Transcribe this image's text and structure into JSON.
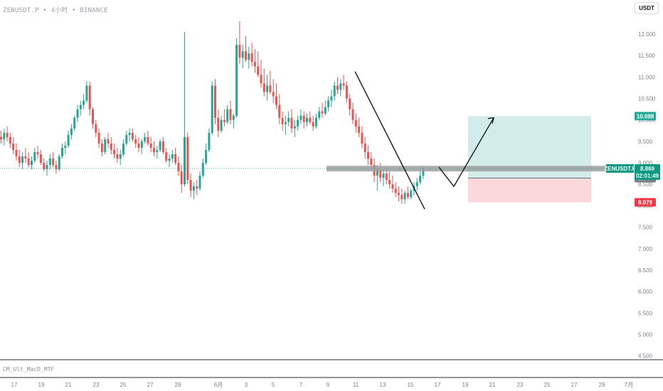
{
  "header": {
    "symbol": "ZENUSDT.P",
    "interval": "4小时",
    "exchange": "BINANCE",
    "separator": "•"
  },
  "currency_button": "USDT",
  "indicator_pane_label": "CM_Ult_MacD_MTF",
  "price_labels": {
    "target": "10.088",
    "ticker": "ZENUSDT.P",
    "current_price": "8.869",
    "countdown": "02:01:49",
    "entry": "8.644",
    "stop": "8.079"
  },
  "colors": {
    "up": "#26a69a",
    "down": "#ef5350",
    "profit_zone": "#b2dfdb",
    "loss_zone": "#f8c8cc",
    "support_band": "#9e9e9e",
    "stop_label": "#f23645",
    "target_label": "#22ab94",
    "ticker_label": "#089981",
    "entry_label": "#787b86"
  },
  "chart_data": {
    "type": "candlestick",
    "ylim": [
      4.4,
      12.6
    ],
    "y_ticks": [
      "4.500",
      "5.000",
      "5.500",
      "6.000",
      "6.500",
      "7.000",
      "7.500",
      "8.000",
      "8.500",
      "9.000",
      "9.500",
      "10.000",
      "10.500",
      "11.000",
      "11.500",
      "12.000"
    ],
    "x_ticks": [
      "17",
      "19",
      "21",
      "23",
      "25",
      "27",
      "29",
      "6月",
      "3",
      "5",
      "7",
      "9",
      "11",
      "13",
      "15",
      "17",
      "19",
      "21",
      "23",
      "25",
      "27",
      "29",
      "7月"
    ],
    "ohlc": [
      [
        9.6,
        9.75,
        9.45,
        9.55
      ],
      [
        9.55,
        9.8,
        9.4,
        9.7
      ],
      [
        9.7,
        9.85,
        9.5,
        9.6
      ],
      [
        9.6,
        9.7,
        9.35,
        9.45
      ],
      [
        9.45,
        9.6,
        9.2,
        9.3
      ],
      [
        9.3,
        9.45,
        9.05,
        9.15
      ],
      [
        9.15,
        9.3,
        8.9,
        9.0
      ],
      [
        9.0,
        9.25,
        8.85,
        9.15
      ],
      [
        9.15,
        9.35,
        9.0,
        9.1
      ],
      [
        9.1,
        9.25,
        8.9,
        8.95
      ],
      [
        8.95,
        9.15,
        8.85,
        9.05
      ],
      [
        9.05,
        9.35,
        9.0,
        9.25
      ],
      [
        9.25,
        9.4,
        9.1,
        9.2
      ],
      [
        9.2,
        9.3,
        8.95,
        9.0
      ],
      [
        9.0,
        9.1,
        8.8,
        8.85
      ],
      [
        8.85,
        9.05,
        8.7,
        8.95
      ],
      [
        8.95,
        9.2,
        8.85,
        9.1
      ],
      [
        9.1,
        9.25,
        8.9,
        8.95
      ],
      [
        8.95,
        9.05,
        8.75,
        8.85
      ],
      [
        8.85,
        9.2,
        8.8,
        9.15
      ],
      [
        9.15,
        9.45,
        9.1,
        9.35
      ],
      [
        9.35,
        9.5,
        9.2,
        9.4
      ],
      [
        9.4,
        9.75,
        9.35,
        9.65
      ],
      [
        9.65,
        9.9,
        9.55,
        9.8
      ],
      [
        9.8,
        10.1,
        9.75,
        10.05
      ],
      [
        10.05,
        10.35,
        9.95,
        10.25
      ],
      [
        10.25,
        10.45,
        10.1,
        10.35
      ],
      [
        10.35,
        10.6,
        10.25,
        10.45
      ],
      [
        10.45,
        10.9,
        10.4,
        10.8
      ],
      [
        10.8,
        10.9,
        10.1,
        10.25
      ],
      [
        10.25,
        10.3,
        9.8,
        9.9
      ],
      [
        9.9,
        10.0,
        9.6,
        9.7
      ],
      [
        9.7,
        9.8,
        9.35,
        9.45
      ],
      [
        9.45,
        9.55,
        9.15,
        9.25
      ],
      [
        9.25,
        9.6,
        9.2,
        9.55
      ],
      [
        9.55,
        9.7,
        9.35,
        9.45
      ],
      [
        9.45,
        9.6,
        9.2,
        9.3
      ],
      [
        9.3,
        9.45,
        9.1,
        9.2
      ],
      [
        9.2,
        9.35,
        9.0,
        9.1
      ],
      [
        9.1,
        9.3,
        8.95,
        9.2
      ],
      [
        9.2,
        9.55,
        9.15,
        9.45
      ],
      [
        9.45,
        9.75,
        9.4,
        9.65
      ],
      [
        9.65,
        9.8,
        9.5,
        9.7
      ],
      [
        9.7,
        9.8,
        9.5,
        9.55
      ],
      [
        9.55,
        9.65,
        9.35,
        9.45
      ],
      [
        9.45,
        9.6,
        9.25,
        9.35
      ],
      [
        9.35,
        9.55,
        9.2,
        9.5
      ],
      [
        9.5,
        9.7,
        9.45,
        9.6
      ],
      [
        9.6,
        9.75,
        9.4,
        9.45
      ],
      [
        9.45,
        9.6,
        9.25,
        9.35
      ],
      [
        9.35,
        9.5,
        9.15,
        9.25
      ],
      [
        9.25,
        9.4,
        9.1,
        9.3
      ],
      [
        9.3,
        9.55,
        9.25,
        9.5
      ],
      [
        9.5,
        9.6,
        9.2,
        9.25
      ],
      [
        9.25,
        9.35,
        9.0,
        9.05
      ],
      [
        9.05,
        9.2,
        8.9,
        9.1
      ],
      [
        9.1,
        9.3,
        9.0,
        9.2
      ],
      [
        9.2,
        9.35,
        8.95,
        9.0
      ],
      [
        9.0,
        9.15,
        8.7,
        8.8
      ],
      [
        8.8,
        8.95,
        8.3,
        8.5
      ],
      [
        8.5,
        12.05,
        8.45,
        9.6
      ],
      [
        9.6,
        9.7,
        8.5,
        8.6
      ],
      [
        8.6,
        8.75,
        8.2,
        8.35
      ],
      [
        8.35,
        8.55,
        8.15,
        8.45
      ],
      [
        8.45,
        8.6,
        8.25,
        8.4
      ],
      [
        8.4,
        8.8,
        8.35,
        8.7
      ],
      [
        8.7,
        9.1,
        8.65,
        9.0
      ],
      [
        9.0,
        9.45,
        8.95,
        9.3
      ],
      [
        9.3,
        9.8,
        9.25,
        9.7
      ],
      [
        9.7,
        10.9,
        9.65,
        10.8
      ],
      [
        10.8,
        10.95,
        9.9,
        10.05
      ],
      [
        10.05,
        10.25,
        9.6,
        9.75
      ],
      [
        9.75,
        10.1,
        9.7,
        10.0
      ],
      [
        10.0,
        10.25,
        9.85,
        9.95
      ],
      [
        9.95,
        10.35,
        9.9,
        10.25
      ],
      [
        10.25,
        10.45,
        9.9,
        10.0
      ],
      [
        10.0,
        10.15,
        9.8,
        10.1
      ],
      [
        10.1,
        11.9,
        10.05,
        11.75
      ],
      [
        11.75,
        12.3,
        11.3,
        11.45
      ],
      [
        11.45,
        11.75,
        11.2,
        11.6
      ],
      [
        11.6,
        11.95,
        11.35,
        11.4
      ],
      [
        11.4,
        11.7,
        11.2,
        11.55
      ],
      [
        11.55,
        11.8,
        11.25,
        11.35
      ],
      [
        11.35,
        11.65,
        11.1,
        11.25
      ],
      [
        11.25,
        11.6,
        11.0,
        11.05
      ],
      [
        11.05,
        11.4,
        10.75,
        10.85
      ],
      [
        10.85,
        11.2,
        10.55,
        10.65
      ],
      [
        10.65,
        11.05,
        10.45,
        10.8
      ],
      [
        10.8,
        11.15,
        10.6,
        10.65
      ],
      [
        10.65,
        10.95,
        10.4,
        10.55
      ],
      [
        10.55,
        10.85,
        10.25,
        10.35
      ],
      [
        10.35,
        10.6,
        9.9,
        10.05
      ],
      [
        10.05,
        10.2,
        9.75,
        9.9
      ],
      [
        9.9,
        10.1,
        9.65,
        9.95
      ],
      [
        9.95,
        10.2,
        9.85,
        10.05
      ],
      [
        10.05,
        10.25,
        9.7,
        9.8
      ],
      [
        9.8,
        10.0,
        9.6,
        9.85
      ],
      [
        9.85,
        10.1,
        9.75,
        10.0
      ],
      [
        10.0,
        10.25,
        9.9,
        10.1
      ],
      [
        10.1,
        10.2,
        9.8,
        9.95
      ],
      [
        9.95,
        10.15,
        9.85,
        10.05
      ],
      [
        10.05,
        10.2,
        9.9,
        9.95
      ],
      [
        9.95,
        10.1,
        9.75,
        9.85
      ],
      [
        9.85,
        10.15,
        9.8,
        10.05
      ],
      [
        10.05,
        10.3,
        10.0,
        10.2
      ],
      [
        10.2,
        10.4,
        10.05,
        10.15
      ],
      [
        10.15,
        10.45,
        10.1,
        10.3
      ],
      [
        10.3,
        10.55,
        10.2,
        10.45
      ],
      [
        10.45,
        10.7,
        10.3,
        10.55
      ],
      [
        10.55,
        10.9,
        10.45,
        10.8
      ],
      [
        10.8,
        11.0,
        10.6,
        10.7
      ],
      [
        10.7,
        10.95,
        10.55,
        10.85
      ],
      [
        10.85,
        11.05,
        10.7,
        10.8
      ],
      [
        10.8,
        10.9,
        10.4,
        10.5
      ],
      [
        10.5,
        10.6,
        10.1,
        10.25
      ],
      [
        10.25,
        10.4,
        9.9,
        10.0
      ],
      [
        10.0,
        10.15,
        9.7,
        9.85
      ],
      [
        9.85,
        10.05,
        9.6,
        9.7
      ],
      [
        9.7,
        9.85,
        9.35,
        9.45
      ],
      [
        9.45,
        9.6,
        9.1,
        9.25
      ],
      [
        9.25,
        9.4,
        8.95,
        9.1
      ],
      [
        9.1,
        9.25,
        8.85,
        8.95
      ],
      [
        8.95,
        9.1,
        8.55,
        8.7
      ],
      [
        8.7,
        8.95,
        8.35,
        8.85
      ],
      [
        8.85,
        9.0,
        8.55,
        8.65
      ],
      [
        8.65,
        8.85,
        8.45,
        8.75
      ],
      [
        8.75,
        8.9,
        8.5,
        8.6
      ],
      [
        8.6,
        8.8,
        8.4,
        8.5
      ],
      [
        8.5,
        8.7,
        8.3,
        8.4
      ],
      [
        8.4,
        8.55,
        8.2,
        8.3
      ],
      [
        8.3,
        8.45,
        8.1,
        8.25
      ],
      [
        8.25,
        8.4,
        8.05,
        8.15
      ],
      [
        8.15,
        8.35,
        8.05,
        8.3
      ],
      [
        8.3,
        8.45,
        8.15,
        8.2
      ],
      [
        8.2,
        8.4,
        8.15,
        8.35
      ],
      [
        8.35,
        8.55,
        8.25,
        8.45
      ],
      [
        8.45,
        8.65,
        8.35,
        8.55
      ],
      [
        8.55,
        8.8,
        8.5,
        8.7
      ],
      [
        8.7,
        8.92,
        8.62,
        8.87
      ]
    ],
    "current_price": 8.869,
    "support_band": [
      8.8,
      8.93
    ],
    "trade_box": {
      "target": 10.088,
      "entry": 8.644,
      "stop": 8.079
    },
    "drawing_lines": [
      {
        "name": "trendline",
        "points": [
          [
            499,
            11.13
          ],
          [
            597,
            7.92
          ]
        ]
      },
      {
        "name": "projection-path",
        "points": [
          [
            617,
            8.9
          ],
          [
            638,
            8.45
          ],
          [
            694,
            10.05
          ]
        ]
      }
    ]
  }
}
